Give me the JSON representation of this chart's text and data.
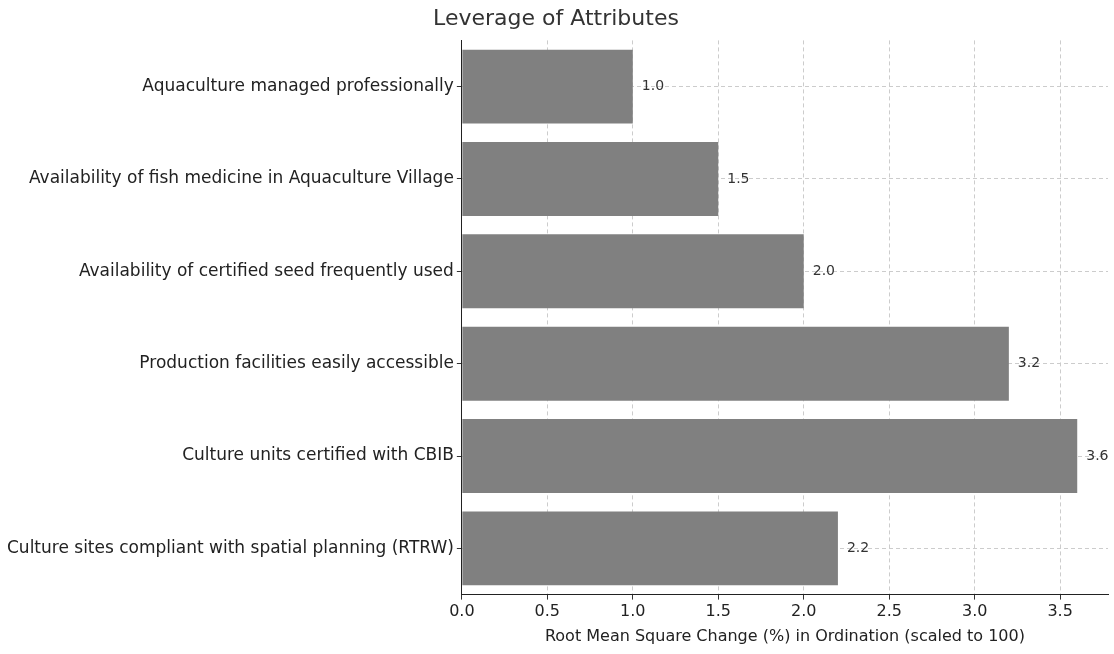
{
  "chart_data": {
    "type": "bar",
    "orientation": "horizontal",
    "title": "Leverage of Attributes",
    "xlabel": "Root Mean Square Change (%) in Ordination (scaled to 100)",
    "categories": [
      "Aquaculture managed professionally",
      "Availability of fish medicine in Aquaculture Village",
      "Availability of certified seed frequently used",
      "Production facilities easily accessible",
      "Culture units certified with CBIB",
      "Culture sites compliant with spatial planning (RTRW)"
    ],
    "values": [
      1.0,
      1.5,
      2.0,
      3.2,
      3.6,
      2.2
    ],
    "value_labels": [
      "1.0",
      "1.5",
      "2.0",
      "3.2",
      "3.6",
      "2.2"
    ],
    "color": "#808080",
    "xlim": [
      0,
      3.78
    ],
    "xticks": [
      {
        "value": 0,
        "label": "0.0"
      },
      {
        "value": 0.5,
        "label": "0.5"
      },
      {
        "value": 1,
        "label": "1.0"
      },
      {
        "value": 1.5,
        "label": "1.5"
      },
      {
        "value": 2,
        "label": "2.0"
      },
      {
        "value": 2.5,
        "label": "2.5"
      },
      {
        "value": 3,
        "label": "3.0"
      },
      {
        "value": 3.5,
        "label": "3.5"
      }
    ],
    "grid": true,
    "legend": false
  }
}
